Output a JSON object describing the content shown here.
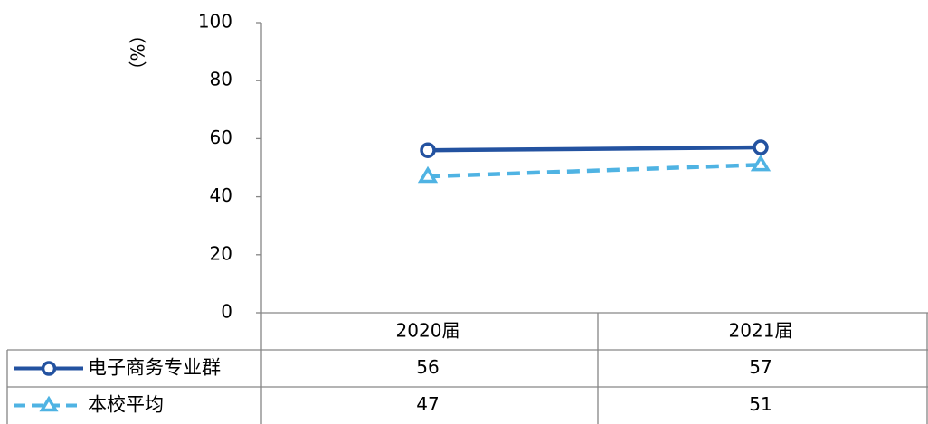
{
  "chart_data": {
    "type": "line",
    "categories": [
      "2020届",
      "2021届"
    ],
    "series": [
      {
        "name": "电子商务专业群",
        "values": [
          56,
          57
        ],
        "color": "#2352A0",
        "marker": "circle",
        "line_style": "solid"
      },
      {
        "name": "本校平均",
        "values": [
          47,
          51
        ],
        "color": "#4FB3E3",
        "marker": "triangle",
        "line_style": "dashed"
      }
    ],
    "ylabel": "（%）",
    "ylim": [
      0,
      100
    ],
    "yticks": [
      0,
      20,
      40,
      60,
      80,
      100
    ],
    "grid": false,
    "legend": "data-table-below"
  }
}
